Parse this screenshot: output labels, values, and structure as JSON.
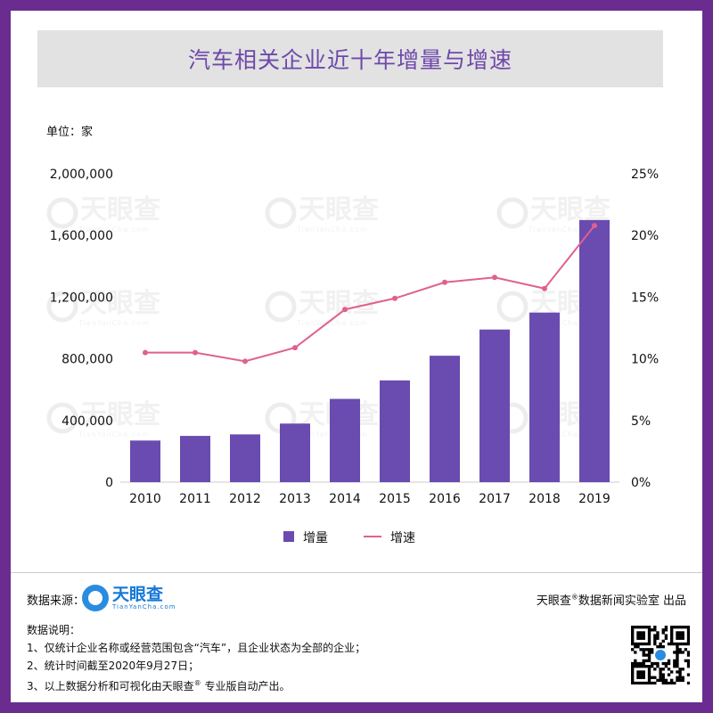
{
  "title": "汽车相关企业近十年增量与增速",
  "unit_label": "单位：家",
  "chart_data": {
    "type": "bar",
    "categories": [
      "2010",
      "2011",
      "2012",
      "2013",
      "2014",
      "2015",
      "2016",
      "2017",
      "2018",
      "2019"
    ],
    "series": [
      {
        "name": "增量",
        "type": "bar",
        "axis": "left",
        "color": "#6a4bb0",
        "values": [
          270000,
          300000,
          310000,
          380000,
          540000,
          660000,
          820000,
          990000,
          1100000,
          1700000
        ]
      },
      {
        "name": "增速",
        "type": "line",
        "axis": "right",
        "color": "#e06090",
        "values": [
          10.5,
          10.5,
          9.8,
          10.9,
          14.0,
          14.9,
          16.2,
          16.6,
          15.7,
          20.8
        ]
      }
    ],
    "y_left": {
      "ylim": [
        0,
        2000000
      ],
      "ticks": [
        "0",
        "400,000",
        "800,000",
        "1,200,000",
        "1,600,000",
        "2,000,000"
      ]
    },
    "y_right": {
      "ylim": [
        0,
        25
      ],
      "ticks": [
        "0%",
        "5%",
        "10%",
        "15%",
        "20%",
        "25%"
      ]
    },
    "legend": {
      "placement": "bottom",
      "items": [
        "增量",
        "增速"
      ]
    },
    "grid": false
  },
  "watermark_text": {
    "cn": "天眼查",
    "en": "TianYanCha.com"
  },
  "footer": {
    "source_label": "数据来源：",
    "logo_cn": "天眼查",
    "logo_en": "TianYanCha.com",
    "producer_a": "天眼查",
    "producer_reg": "®",
    "producer_b": "数据新闻实验室 出品",
    "notes_title": "数据说明：",
    "note1": "1、仅统计企业名称或经营范围包含“汽车”，且企业状态为全部的企业；",
    "note2": "2、统计时间截至2020年9月27日；",
    "note3_a": "3、以上数据分析和可视化由天眼查",
    "note3_reg": "®",
    "note3_b": " 专业版自动产出。"
  }
}
